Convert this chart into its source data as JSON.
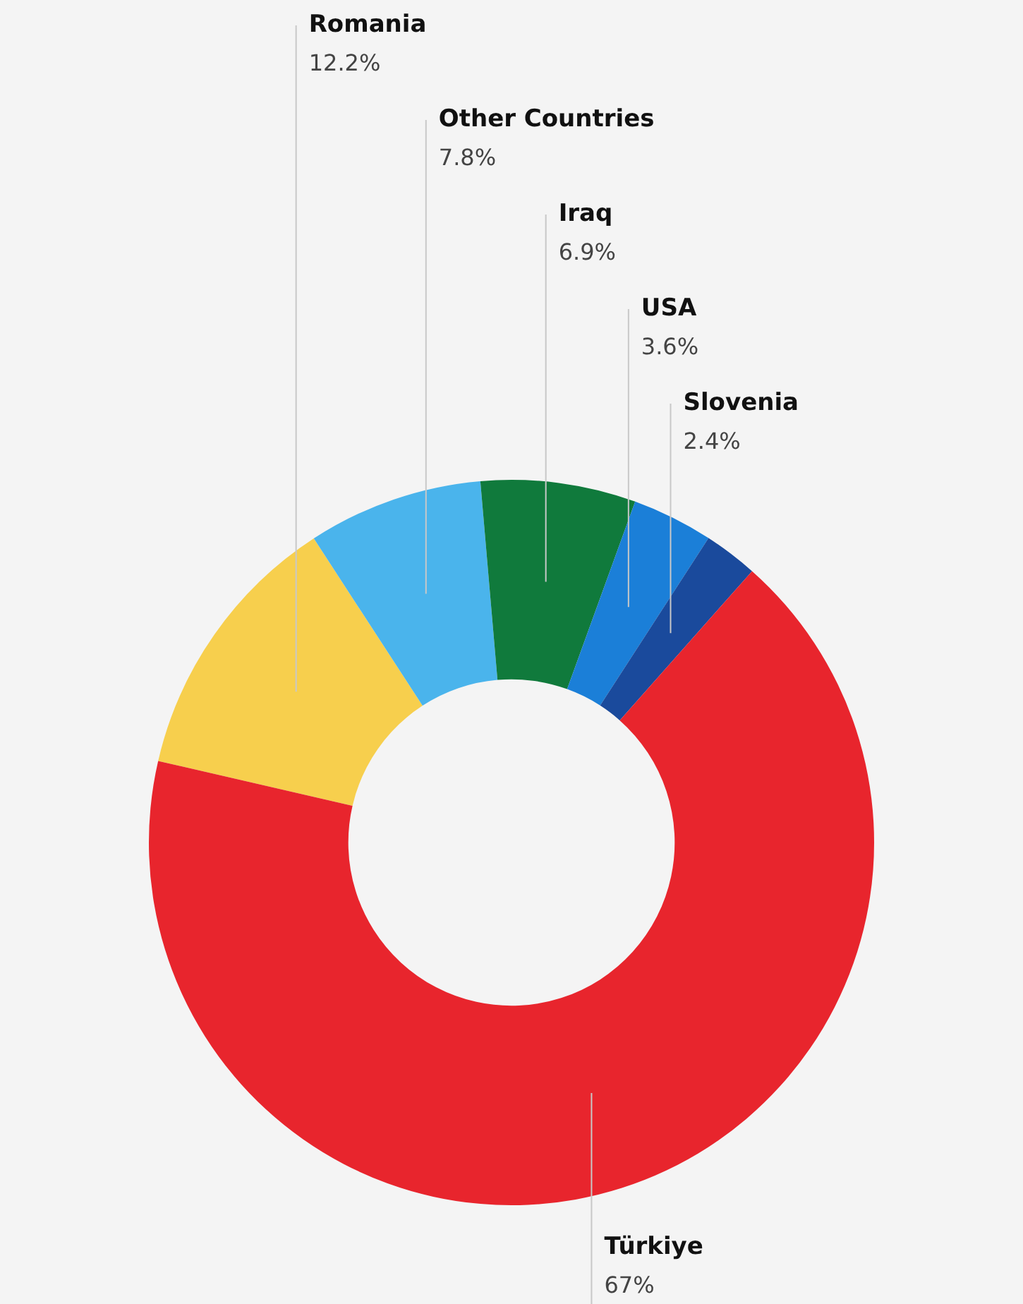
{
  "chart_data": {
    "type": "donut",
    "categories": [
      "Romania",
      "Other Countries",
      "Iraq",
      "USA",
      "Slovenia",
      "Türkiye"
    ],
    "values": [
      12.2,
      7.8,
      6.9,
      3.6,
      2.4,
      67
    ],
    "value_labels": [
      "12.2%",
      "7.8%",
      "6.9%",
      "3.6%",
      "2.4%",
      "67%"
    ],
    "colors": [
      "#f7cf4d",
      "#4ab4ec",
      "#107a3c",
      "#1b7fd8",
      "#1a4a9c",
      "#e8252d"
    ],
    "legend": false
  }
}
